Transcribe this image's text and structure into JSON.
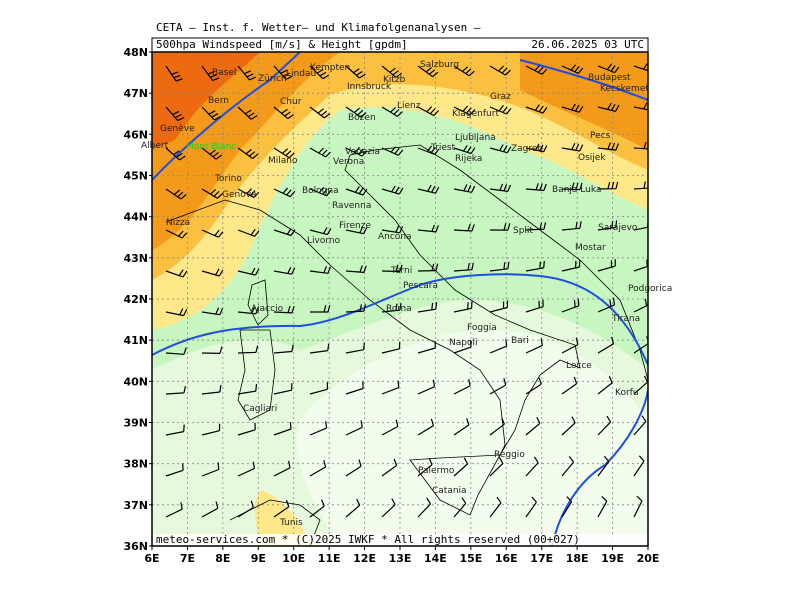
{
  "header": {
    "institute": "CETA — Inst. f. Wetter— und Klimafolgenanalysen —",
    "title": "500hpa Windspeed [m/s] & Height [gpdm]",
    "date": "26.06.2025 03 UTC"
  },
  "axes": {
    "longitudes": [
      "6E",
      "7E",
      "8E",
      "9E",
      "10E",
      "11E",
      "12E",
      "13E",
      "14E",
      "15E",
      "16E",
      "17E",
      "18E",
      "19E",
      "20E"
    ],
    "latitudes": [
      "48N",
      "47N",
      "46N",
      "45N",
      "44N",
      "43N",
      "42N",
      "41N",
      "40N",
      "39N",
      "38N",
      "37N",
      "36N"
    ]
  },
  "places": [
    "Salzburg",
    "Kempten",
    "Innsbruck",
    "Zürich",
    "Basel",
    "Bern",
    "Genève",
    "Milano",
    "Torino",
    "Genova",
    "Nizza",
    "Bozen",
    "Verona",
    "Venezia",
    "Bologna",
    "Ravenna",
    "Firenze",
    "Livorno",
    "Ancona",
    "Terni",
    "Roma",
    "Pescara",
    "Napoli",
    "Foggia",
    "Bari",
    "Lecce",
    "Korfu",
    "Tirana",
    "Podgorica",
    "Sarajevo",
    "Mostar",
    "Split",
    "Osijek",
    "Banja Luka",
    "Zagreb",
    "Ljubljana",
    "Klagenfurt",
    "Graz",
    "Triest",
    "Rijeka",
    "Budapest",
    "Kecskemet",
    "Pecs",
    "Palermo",
    "Catania",
    "Reggio",
    "Cagliari",
    "Ajaccio",
    "Tunis",
    "Lienz",
    "Chur",
    "Lindau",
    "Kitzb",
    "Mont Blanc",
    "Albert"
  ],
  "footer": "meteo-services.com * (C)2025 IWKF * All rights reserved (00+027)"
}
